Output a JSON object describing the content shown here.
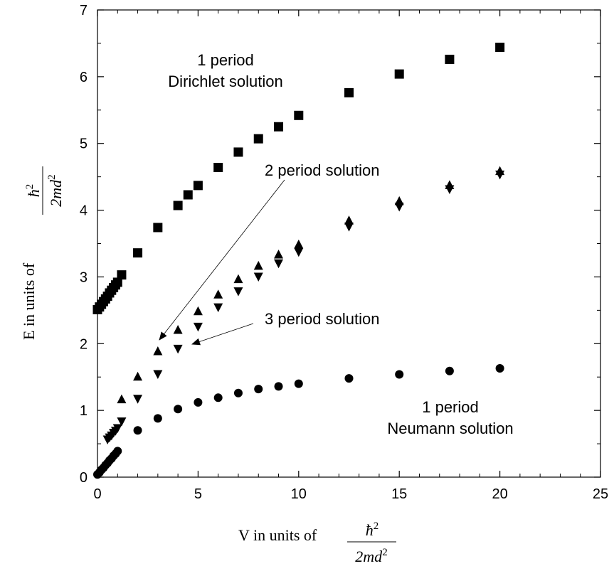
{
  "chart_data": {
    "type": "scatter",
    "xlim": [
      0,
      25
    ],
    "ylim": [
      0,
      7
    ],
    "xticks": [
      "0",
      "5",
      "10",
      "15",
      "20",
      "25"
    ],
    "yticks": [
      "0",
      "1",
      "2",
      "3",
      "4",
      "5",
      "6",
      "7"
    ],
    "xlabel": {
      "prefix": "V in units of",
      "numerator": "ħ",
      "numerator_exp": "2",
      "denominator": "2md",
      "denominator_exp": "2"
    },
    "ylabel": {
      "prefix": "E in units of",
      "numerator": "ħ",
      "numerator_exp": "2",
      "denominator": "2md",
      "denominator_exp": "2"
    },
    "grid": false,
    "legend": "none",
    "series": [
      {
        "marker": "square",
        "x": [
          0.0,
          0.1,
          0.2,
          0.3,
          0.4,
          0.5,
          0.6,
          0.7,
          0.8,
          0.9,
          1.0,
          1.2,
          2,
          3,
          4,
          4.5,
          5,
          6,
          7,
          8,
          9,
          10,
          12.5,
          15,
          17.5,
          20
        ],
        "y": [
          2.51,
          2.55,
          2.59,
          2.63,
          2.67,
          2.71,
          2.76,
          2.8,
          2.84,
          2.88,
          2.92,
          3.03,
          3.36,
          3.74,
          4.07,
          4.23,
          4.37,
          4.64,
          4.87,
          5.07,
          5.25,
          5.42,
          5.76,
          6.04,
          6.26,
          6.44
        ]
      },
      {
        "marker": "triangle-up",
        "x": [
          3,
          4,
          5,
          6,
          7,
          8,
          9,
          10,
          12.5,
          15,
          17.5,
          20
        ],
        "y": [
          1.88,
          2.2,
          2.48,
          2.73,
          2.96,
          3.16,
          3.33,
          3.48,
          3.84,
          4.13,
          4.37,
          4.58
        ]
      },
      {
        "marker": "triangle-down",
        "x": [
          0.5,
          0.6,
          0.7,
          0.8,
          0.9,
          1.0,
          1.2,
          2,
          3,
          4,
          5,
          6,
          7,
          8,
          9,
          10,
          12.5,
          15,
          17.5,
          20
        ],
        "y": [
          0.57,
          0.6,
          0.63,
          0.67,
          0.7,
          0.74,
          0.84,
          1.18,
          1.55,
          1.93,
          2.26,
          2.55,
          2.79,
          3.01,
          3.21,
          3.38,
          3.76,
          4.06,
          4.32,
          4.54
        ]
      },
      {
        "marker": "triangle-up-early",
        "x": [
          1.2,
          2
        ],
        "y": [
          1.16,
          1.5
        ]
      },
      {
        "marker": "circle",
        "x": [
          0.0,
          0.1,
          0.2,
          0.3,
          0.4,
          0.5,
          0.6,
          0.7,
          0.8,
          0.9,
          1.0,
          2,
          3,
          4,
          5,
          6,
          7,
          8,
          9,
          10,
          12.5,
          15,
          17.5,
          20
        ],
        "y": [
          0.04,
          0.07,
          0.11,
          0.14,
          0.18,
          0.21,
          0.25,
          0.28,
          0.32,
          0.35,
          0.39,
          0.7,
          0.88,
          1.02,
          1.12,
          1.19,
          1.26,
          1.32,
          1.36,
          1.4,
          1.48,
          1.54,
          1.59,
          1.63
        ]
      }
    ],
    "annotations": {
      "dirichlet": [
        "1 period",
        "Dirichlet solution"
      ],
      "two_period": "2 period solution",
      "three_period": "3 period solution",
      "neumann": [
        "1 period",
        "Neumann solution"
      ]
    }
  }
}
